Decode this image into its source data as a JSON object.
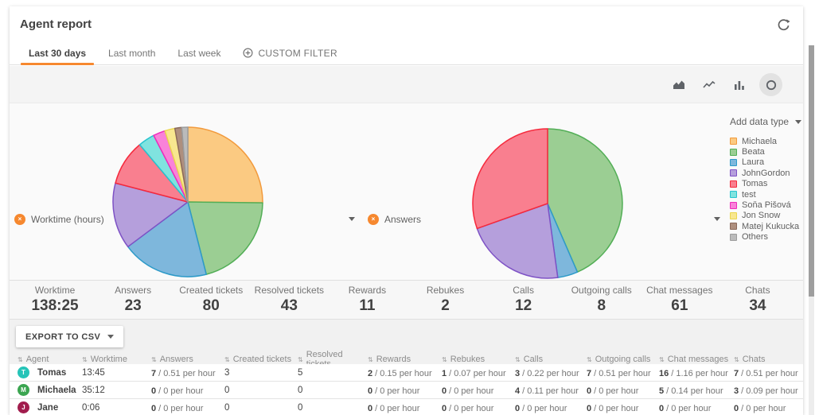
{
  "header": {
    "title": "Agent report"
  },
  "tabs": {
    "items": [
      {
        "label": "Last 30 days"
      },
      {
        "label": "Last month"
      },
      {
        "label": "Last week"
      },
      {
        "label": "CUSTOM FILTER"
      }
    ]
  },
  "toolbar": {
    "chart_type_icons": [
      "area-chart",
      "line-chart",
      "bar-chart",
      "pie-chart"
    ],
    "active_chart_type": "pie-chart"
  },
  "charts": {
    "left": {
      "title": "Worktime (hours)"
    },
    "right": {
      "title": "Answers"
    },
    "add_data_type": {
      "label": "Add data type"
    }
  },
  "icons": {
    "close": "×",
    "sort": "⇅"
  },
  "accent_color": "#f6882f",
  "legend": {
    "items": [
      {
        "label": "Michaela",
        "fill": "#fbca82",
        "stroke": "#f29a3c"
      },
      {
        "label": "Beata",
        "fill": "#9bce93",
        "stroke": "#52ae56"
      },
      {
        "label": "Laura",
        "fill": "#7eb7dc",
        "stroke": "#2d9ac8"
      },
      {
        "label": "JohnGordon",
        "fill": "#b59fdc",
        "stroke": "#7e52c5"
      },
      {
        "label": "Tomas",
        "fill": "#f97f8f",
        "stroke": "#f5293c"
      },
      {
        "label": "test",
        "fill": "#80e3df",
        "stroke": "#27c4cf"
      },
      {
        "label": "Soňa Pišová",
        "fill": "#f982d9",
        "stroke": "#ee2cbc"
      },
      {
        "label": "Jon Snow",
        "fill": "#f8e78f",
        "stroke": "#ead64e"
      },
      {
        "label": "Matej Kukucka",
        "fill": "#ae8f7e",
        "stroke": "#8a695b"
      },
      {
        "label": "Others",
        "fill": "#bbbbbb",
        "stroke": "#9c9c9c"
      }
    ]
  },
  "chart_data": [
    {
      "type": "pie",
      "title": "Worktime (hours)",
      "labels": [
        "Michaela",
        "Beata",
        "Laura",
        "JohnGordon",
        "Tomas",
        "test",
        "Soňa Pišová",
        "Jon Snow",
        "Matej Kukucka",
        "Others"
      ],
      "values": [
        25.4,
        21.0,
        18.9,
        14.4,
        9.9,
        3.6,
        2.6,
        2.2,
        1.5,
        1.3
      ],
      "unit": "percent of total worktime 138:25",
      "start_angle_deg": -90,
      "direction": "clockwise",
      "legend_position": "right"
    },
    {
      "type": "pie",
      "title": "Answers",
      "labels": [
        "Beata",
        "Laura",
        "JohnGordon",
        "Tomas"
      ],
      "values": [
        10,
        1,
        5,
        7
      ],
      "unit": "answers (total 23)",
      "start_angle_deg": -90,
      "direction": "clockwise",
      "legend_position": "right"
    }
  ],
  "stats": {
    "items": [
      {
        "label": "Worktime",
        "value": "138:25"
      },
      {
        "label": "Answers",
        "value": "23"
      },
      {
        "label": "Created tickets",
        "value": "80"
      },
      {
        "label": "Resolved tickets",
        "value": "43"
      },
      {
        "label": "Rewards",
        "value": "11"
      },
      {
        "label": "Rebukes",
        "value": "2"
      },
      {
        "label": "Calls",
        "value": "12"
      },
      {
        "label": "Outgoing calls",
        "value": "8"
      },
      {
        "label": "Chat messages",
        "value": "61"
      },
      {
        "label": "Chats",
        "value": "34"
      }
    ]
  },
  "export": {
    "label": "EXPORT TO CSV"
  },
  "table": {
    "columns": [
      "Agent",
      "Worktime",
      "Answers",
      "Created tickets",
      "Resolved tickets",
      "Rewards",
      "Rebukes",
      "Calls",
      "Outgoing calls",
      "Chat messages",
      "Chats"
    ],
    "rows": [
      {
        "name": "Tomas",
        "initial": "T",
        "avatar_color": "#26c4b8",
        "worktime": "13:45",
        "answers_n": "7",
        "answers_rate": "/ 0.51 per hour",
        "created": "3",
        "resolved": "5",
        "rewards_n": "2",
        "rewards_rate": "/ 0.15 per hour",
        "rebukes_n": "1",
        "rebukes_rate": "/ 0.07 per hour",
        "calls_n": "3",
        "calls_rate": "/ 0.22 per hour",
        "outgoing_n": "7",
        "outgoing_rate": "/ 0.51 per hour",
        "chatmsg_n": "16",
        "chatmsg_rate": "/ 1.16 per hour",
        "chats_n": "7",
        "chats_rate": "/ 0.51 per hour"
      },
      {
        "name": "Michaela",
        "initial": "M",
        "avatar_color": "#3ba550",
        "worktime": "35:12",
        "answers_n": "0",
        "answers_rate": "/ 0 per hour",
        "created": "0",
        "resolved": "0",
        "rewards_n": "0",
        "rewards_rate": "/ 0 per hour",
        "rebukes_n": "0",
        "rebukes_rate": "/ 0 per hour",
        "calls_n": "4",
        "calls_rate": "/ 0.11 per hour",
        "outgoing_n": "0",
        "outgoing_rate": "/ 0 per hour",
        "chatmsg_n": "5",
        "chatmsg_rate": "/ 0.14 per hour",
        "chats_n": "3",
        "chats_rate": "/ 0.09 per hour"
      },
      {
        "name": "Jane",
        "initial": "J",
        "avatar_color": "#a11d4d",
        "worktime": "0:06",
        "answers_n": "0",
        "answers_rate": "/ 0 per hour",
        "created": "0",
        "resolved": "0",
        "rewards_n": "0",
        "rewards_rate": "/ 0 per hour",
        "rebukes_n": "0",
        "rebukes_rate": "/ 0 per hour",
        "calls_n": "0",
        "calls_rate": "/ 0 per hour",
        "outgoing_n": "0",
        "outgoing_rate": "/ 0 per hour",
        "chatmsg_n": "0",
        "chatmsg_rate": "/ 0 per hour",
        "chats_n": "0",
        "chats_rate": "/ 0 per hour"
      }
    ]
  }
}
